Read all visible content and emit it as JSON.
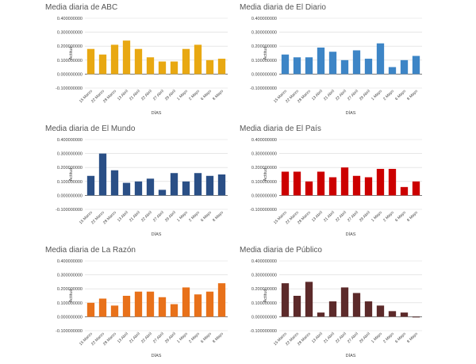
{
  "chart_data": [
    {
      "type": "bar",
      "title": "Media diaria de ABC",
      "xlabel": "DÍAS",
      "ylabel": "Actitud",
      "color": "#E8A812",
      "ylim": [
        -0.1,
        0.4
      ],
      "yticks": [
        "0.400000000",
        "0.300000000",
        "0.200000000",
        "0.100000000",
        "0.000000000",
        "-0.100000000"
      ],
      "categories": [
        "15 Marzo",
        "22 Marzo",
        "28 Marzo",
        "13 Abril",
        "21 Abril",
        "22 Abril",
        "27 Abril",
        "29 Abril",
        "1 Mayo",
        "2 Mayo",
        "6 Mayo",
        "8 Mayo"
      ],
      "values": [
        0.18,
        0.14,
        0.21,
        0.24,
        0.18,
        0.12,
        0.09,
        0.09,
        0.18,
        0.21,
        0.1,
        0.11
      ],
      "grid": true
    },
    {
      "type": "bar",
      "title": "Media diaria de El Diario",
      "xlabel": "DÍAS",
      "ylabel": "Actitud",
      "color": "#3D85C6",
      "ylim": [
        -0.1,
        0.4
      ],
      "yticks": [
        "0.400000000",
        "0.300000000",
        "0.200000000",
        "0.100000000",
        "0.000000000",
        "-0.100000000"
      ],
      "categories": [
        "15 Marzo",
        "22 Marzo",
        "28 Marzo",
        "13 Abril",
        "21 Abril",
        "22 Abril",
        "27 Abril",
        "29 Abril",
        "1 Mayo",
        "2 Mayo",
        "6 Mayo",
        "8 Mayo"
      ],
      "values": [
        0.14,
        0.12,
        0.12,
        0.19,
        0.16,
        0.1,
        0.17,
        0.11,
        0.22,
        0.05,
        0.1,
        0.13
      ],
      "grid": true
    },
    {
      "type": "bar",
      "title": "Media diaria de El Mundo",
      "xlabel": "DÍAS",
      "ylabel": "Actitud",
      "color": "#2A4F86",
      "ylim": [
        -0.1,
        0.4
      ],
      "yticks": [
        "0.400000000",
        "0.300000000",
        "0.200000000",
        "0.100000000",
        "0.000000000",
        "-0.100000000"
      ],
      "categories": [
        "15 Marzo",
        "22 Marzo",
        "28 Marzo",
        "13 Abril",
        "21 Abril",
        "22 Abril",
        "27 Abril",
        "29 Abril",
        "1 Mayo",
        "2 Mayo",
        "6 Mayo",
        "8 Mayo"
      ],
      "values": [
        0.14,
        0.3,
        0.18,
        0.09,
        0.1,
        0.12,
        0.04,
        0.16,
        0.1,
        0.16,
        0.14,
        0.15
      ],
      "grid": true
    },
    {
      "type": "bar",
      "title": "Media diaria de El País",
      "xlabel": "DÍAS",
      "ylabel": "Actitud",
      "color": "#CC0000",
      "ylim": [
        -0.1,
        0.4
      ],
      "yticks": [
        "0.400000000",
        "0.300000000",
        "0.200000000",
        "0.100000000",
        "0.000000000",
        "-0.100000000"
      ],
      "categories": [
        "15 Marzo",
        "22 Marzo",
        "28 Marzo",
        "13 Abril",
        "21 Abril",
        "22 Abril",
        "27 Abril",
        "29 Abril",
        "1 Mayo",
        "2 Mayo",
        "6 Mayo",
        "8 Mayo"
      ],
      "values": [
        0.17,
        0.17,
        0.1,
        0.17,
        0.13,
        0.2,
        0.14,
        0.13,
        0.19,
        0.19,
        0.06,
        0.1
      ],
      "grid": true
    },
    {
      "type": "bar",
      "title": "Media diaria de La Razón",
      "xlabel": "DÍAS",
      "ylabel": "Actitud",
      "color": "#E8711A",
      "ylim": [
        -0.1,
        0.4
      ],
      "yticks": [
        "0.400000000",
        "0.300000000",
        "0.200000000",
        "0.100000000",
        "0.000000000",
        "-0.100000000"
      ],
      "categories": [
        "15 Marzo",
        "22 Marzo",
        "28 Marzo",
        "13 Abril",
        "21 Abril",
        "22 Abril",
        "27 Abril",
        "29 Abril",
        "1 Mayo",
        "2 Mayo",
        "6 Mayo",
        "8 Mayo"
      ],
      "values": [
        0.1,
        0.13,
        0.08,
        0.15,
        0.18,
        0.18,
        0.14,
        0.09,
        0.21,
        0.16,
        0.18,
        0.24
      ],
      "grid": true
    },
    {
      "type": "bar",
      "title": "Media diaria de Público",
      "xlabel": "DÍAS",
      "ylabel": "Actitud",
      "color": "#5C2A2A",
      "ylim": [
        -0.1,
        0.4
      ],
      "yticks": [
        "0.400000000",
        "0.300000000",
        "0.200000000",
        "0.100000000",
        "0.000000000",
        "-0.100000000"
      ],
      "categories": [
        "15 Marzo",
        "22 Marzo",
        "28 Marzo",
        "13 Abril",
        "21 Abril",
        "22 Abril",
        "27 Abril",
        "29 Abril",
        "1 Mayo",
        "2 Mayo",
        "6 Mayo",
        "8 Mayo"
      ],
      "values": [
        0.24,
        0.15,
        0.25,
        0.03,
        0.11,
        0.21,
        0.17,
        0.11,
        0.08,
        0.04,
        0.03,
        -0.005
      ],
      "grid": true
    }
  ]
}
